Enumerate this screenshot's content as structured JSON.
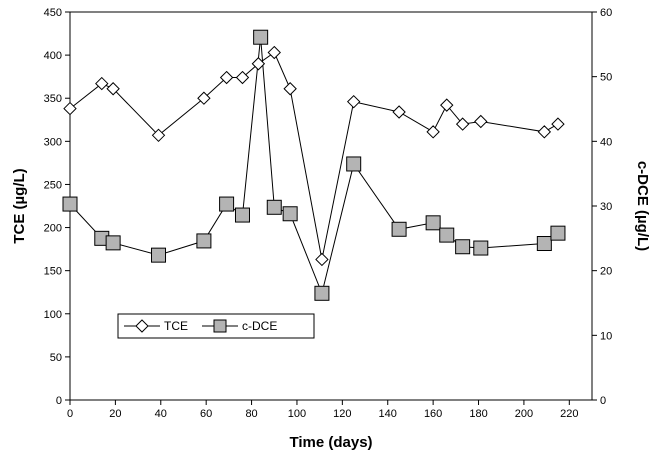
{
  "chart_data": {
    "type": "line",
    "xlabel": "Time (days)",
    "ylabel": "TCE (µg/L)",
    "y2label": "c-DCE (µg/L)",
    "xlim": [
      0,
      230
    ],
    "ylim": [
      0,
      450
    ],
    "y2lim": [
      0,
      60
    ],
    "x_ticks": [
      0,
      20,
      40,
      60,
      80,
      100,
      120,
      140,
      160,
      180,
      200,
      220
    ],
    "y_ticks": [
      0,
      50,
      100,
      150,
      200,
      250,
      300,
      350,
      400,
      450
    ],
    "y2_ticks": [
      0,
      10,
      20,
      30,
      40,
      50,
      60
    ],
    "grid": false,
    "legend_position": "lower-left",
    "series": [
      {
        "name": "TCE",
        "axis": "left",
        "marker": "diamond",
        "marker_fill": "#ffffff",
        "x": [
          0,
          14,
          19,
          39,
          59,
          69,
          76,
          83,
          90,
          97,
          111,
          125,
          145,
          160,
          166,
          173,
          181,
          209,
          215
        ],
        "y": [
          338,
          367,
          361,
          307,
          350,
          374,
          374,
          390,
          403,
          361,
          163,
          346,
          334,
          311,
          342,
          320,
          323,
          311,
          320
        ]
      },
      {
        "name": "c-DCE",
        "axis": "right",
        "marker": "square",
        "marker_fill": "#b4b4b4",
        "x": [
          0,
          14,
          19,
          39,
          59,
          69,
          76,
          84,
          90,
          97,
          111,
          125,
          145,
          160,
          166,
          173,
          181,
          209,
          215
        ],
        "y": [
          30.3,
          25.0,
          24.3,
          22.4,
          24.6,
          30.3,
          28.6,
          56.1,
          29.8,
          28.8,
          16.5,
          36.5,
          26.4,
          27.4,
          25.5,
          23.7,
          23.5,
          24.2,
          25.8
        ]
      }
    ]
  }
}
